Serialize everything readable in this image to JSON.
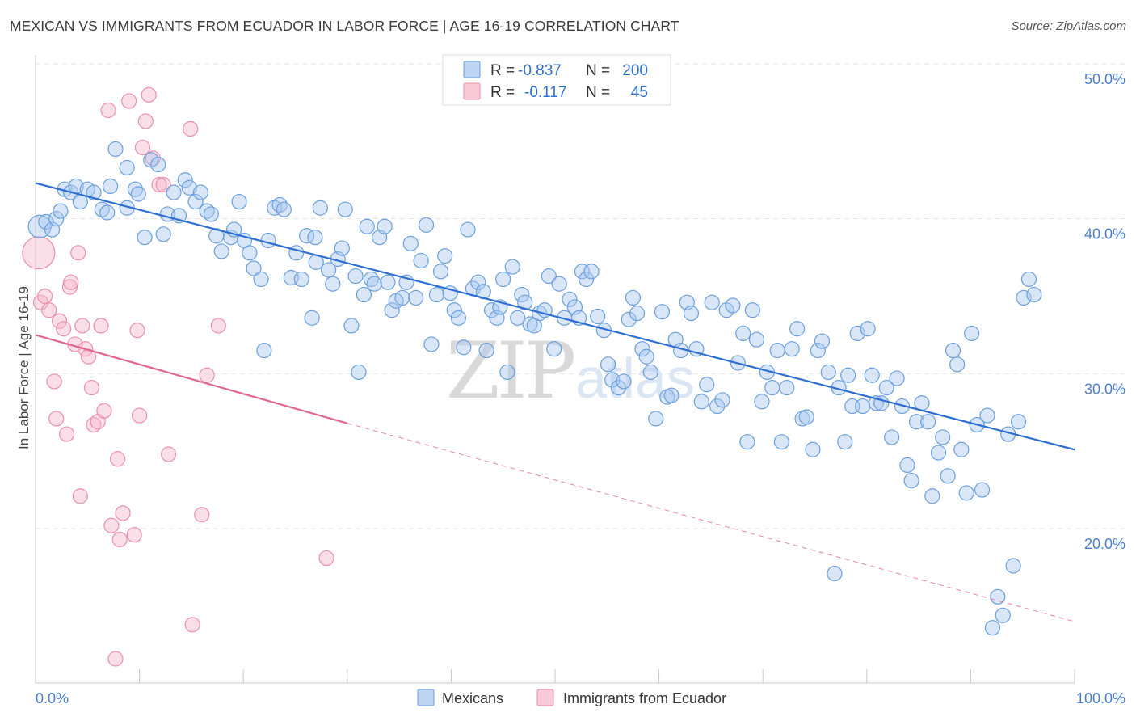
{
  "header": {
    "title": "MEXICAN VS IMMIGRANTS FROM ECUADOR IN LABOR FORCE | AGE 16-19 CORRELATION CHART",
    "source": "Source: ZipAtlas.com"
  },
  "watermark": {
    "zip": "ZIP",
    "atlas": "atlas"
  },
  "chart_data": {
    "type": "scatter",
    "title": "MEXICAN VS IMMIGRANTS FROM ECUADOR IN LABOR FORCE | AGE 16-19 CORRELATION CHART",
    "xlabel": "",
    "ylabel": "In Labor Force | Age 16-19",
    "xlim": [
      0,
      100
    ],
    "ylim": [
      10,
      52
    ],
    "x_tick_labels": {
      "min": "0.0%",
      "max": "100.0%"
    },
    "y_ticks": [
      {
        "value": 20,
        "label": "20.0%"
      },
      {
        "value": 30,
        "label": "30.0%"
      },
      {
        "value": 40,
        "label": "40.0%"
      },
      {
        "value": 50,
        "label": "50.0%"
      }
    ],
    "grid": true,
    "stats_legend": [
      {
        "r_label": "R =",
        "r_value": "-0.837",
        "n_label": "N =",
        "n_value": "200",
        "color": "#a8c8f0"
      },
      {
        "r_label": "R =",
        "r_value": "-0.117",
        "n_label": "N =",
        "n_value": "45",
        "color": "#f7b8cb"
      }
    ],
    "series": [
      {
        "name": "Mexicans",
        "color": "#a8c8f0",
        "stroke": "#6a9fdc",
        "trend": {
          "x": [
            0,
            100
          ],
          "y": [
            42.3,
            25.1
          ],
          "color": "#2f6fcf"
        },
        "points": [
          [
            0.4,
            39.5
          ],
          [
            1,
            39.8
          ],
          [
            1.6,
            39.3
          ],
          [
            2,
            40
          ],
          [
            2.4,
            40.5
          ],
          [
            2.8,
            41.9
          ],
          [
            3.4,
            41.7
          ],
          [
            3.9,
            42.1
          ],
          [
            4.3,
            41.1
          ],
          [
            5,
            41.9
          ],
          [
            5.6,
            41.7
          ],
          [
            6.4,
            40.6
          ],
          [
            6.9,
            40.4
          ],
          [
            7.2,
            42.1
          ],
          [
            7.7,
            44.5
          ],
          [
            8.8,
            40.7
          ],
          [
            8.8,
            43.3
          ],
          [
            9.6,
            41.9
          ],
          [
            9.9,
            41.6
          ],
          [
            10.5,
            38.8
          ],
          [
            11.1,
            43.8
          ],
          [
            11.8,
            43.5
          ],
          [
            12.3,
            39
          ],
          [
            12.7,
            40.3
          ],
          [
            13.3,
            41.7
          ],
          [
            13.8,
            40.2
          ],
          [
            14.4,
            42.5
          ],
          [
            14.8,
            42
          ],
          [
            15.4,
            41.1
          ],
          [
            15.9,
            41.7
          ],
          [
            16.5,
            40.5
          ],
          [
            16.9,
            40.3
          ],
          [
            17.4,
            38.9
          ],
          [
            17.9,
            37.9
          ],
          [
            18.8,
            38.8
          ],
          [
            19.1,
            39.3
          ],
          [
            19.6,
            41.1
          ],
          [
            20.1,
            38.6
          ],
          [
            20.6,
            37.8
          ],
          [
            21,
            36.8
          ],
          [
            21.7,
            36.1
          ],
          [
            22,
            31.5
          ],
          [
            22.4,
            38.6
          ],
          [
            23,
            40.7
          ],
          [
            23.5,
            40.9
          ],
          [
            23.9,
            40.6
          ],
          [
            24.6,
            36.2
          ],
          [
            25.1,
            37.8
          ],
          [
            25.6,
            36.1
          ],
          [
            26.1,
            38.9
          ],
          [
            26.6,
            33.6
          ],
          [
            26.9,
            38.8
          ],
          [
            27,
            37.2
          ],
          [
            27.4,
            40.7
          ],
          [
            28.2,
            36.7
          ],
          [
            28.6,
            35.8
          ],
          [
            29.1,
            37.4
          ],
          [
            29.5,
            38.1
          ],
          [
            29.8,
            40.6
          ],
          [
            30.4,
            33.1
          ],
          [
            30.8,
            36.3
          ],
          [
            31.1,
            30.1
          ],
          [
            31.6,
            35.1
          ],
          [
            31.9,
            39.5
          ],
          [
            32.3,
            36.1
          ],
          [
            32.6,
            35.8
          ],
          [
            33.1,
            38.8
          ],
          [
            33.6,
            39.5
          ],
          [
            33.9,
            35.9
          ],
          [
            34.3,
            34.1
          ],
          [
            34.7,
            34.7
          ],
          [
            35.3,
            34.9
          ],
          [
            35.7,
            35.9
          ],
          [
            36.1,
            38.4
          ],
          [
            36.6,
            34.9
          ],
          [
            37.1,
            37.3
          ],
          [
            37.6,
            39.6
          ],
          [
            38.1,
            31.9
          ],
          [
            38.6,
            35.1
          ],
          [
            39,
            36.6
          ],
          [
            39.4,
            37.6
          ],
          [
            39.9,
            35.2
          ],
          [
            40.3,
            34.1
          ],
          [
            40.7,
            33.6
          ],
          [
            41.2,
            31.7
          ],
          [
            41.6,
            39.3
          ],
          [
            42.1,
            35.5
          ],
          [
            42.6,
            35.9
          ],
          [
            43.1,
            35.3
          ],
          [
            43.4,
            31.5
          ],
          [
            43.9,
            34.1
          ],
          [
            44.4,
            33.6
          ],
          [
            44.7,
            34.3
          ],
          [
            45,
            36.1
          ],
          [
            45.4,
            30.1
          ],
          [
            45.9,
            36.9
          ],
          [
            46.4,
            33.6
          ],
          [
            46.8,
            35.1
          ],
          [
            47.1,
            34.6
          ],
          [
            47.6,
            33.2
          ],
          [
            48,
            33.1
          ],
          [
            48.5,
            33.9
          ],
          [
            49,
            34.1
          ],
          [
            49.4,
            36.3
          ],
          [
            49.9,
            31.6
          ],
          [
            50.4,
            35.8
          ],
          [
            50.9,
            33.6
          ],
          [
            51.4,
            34.8
          ],
          [
            51.9,
            34.3
          ],
          [
            52.3,
            33.6
          ],
          [
            52.6,
            36.6
          ],
          [
            53,
            36.1
          ],
          [
            53.5,
            36.6
          ],
          [
            54.1,
            33.7
          ],
          [
            54.7,
            32.8
          ],
          [
            55.1,
            30.6
          ],
          [
            55.5,
            29.6
          ],
          [
            56.1,
            29.1
          ],
          [
            56.6,
            29.5
          ],
          [
            57.1,
            33.5
          ],
          [
            57.5,
            34.9
          ],
          [
            57.9,
            33.9
          ],
          [
            58.4,
            31.6
          ],
          [
            58.8,
            31.1
          ],
          [
            59.2,
            30.1
          ],
          [
            59.7,
            27.1
          ],
          [
            60.3,
            34
          ],
          [
            60.8,
            28.5
          ],
          [
            61.2,
            28.6
          ],
          [
            61.6,
            32.2
          ],
          [
            62.1,
            31.5
          ],
          [
            62.7,
            34.6
          ],
          [
            63.1,
            33.9
          ],
          [
            63.6,
            31.6
          ],
          [
            64.1,
            28.2
          ],
          [
            64.6,
            29.3
          ],
          [
            65.1,
            34.6
          ],
          [
            65.6,
            27.9
          ],
          [
            66.1,
            28.3
          ],
          [
            66.5,
            34.1
          ],
          [
            67.1,
            34.4
          ],
          [
            67.6,
            30.7
          ],
          [
            68.1,
            32.6
          ],
          [
            68.5,
            25.6
          ],
          [
            69,
            34.1
          ],
          [
            69.4,
            32.2
          ],
          [
            69.9,
            28.2
          ],
          [
            70.4,
            30.1
          ],
          [
            70.9,
            29.1
          ],
          [
            71.4,
            31.5
          ],
          [
            71.8,
            25.6
          ],
          [
            72.3,
            29.1
          ],
          [
            72.8,
            31.6
          ],
          [
            73.3,
            32.9
          ],
          [
            73.8,
            27.1
          ],
          [
            74.2,
            27.2
          ],
          [
            74.8,
            25.1
          ],
          [
            75.3,
            31.5
          ],
          [
            75.7,
            32.1
          ],
          [
            76.3,
            30.1
          ],
          [
            76.9,
            17.1
          ],
          [
            77.3,
            29.1
          ],
          [
            77.9,
            25.6
          ],
          [
            78.2,
            29.9
          ],
          [
            78.6,
            27.9
          ],
          [
            79.1,
            32.6
          ],
          [
            79.6,
            27.9
          ],
          [
            80.1,
            32.9
          ],
          [
            80.5,
            29.9
          ],
          [
            80.9,
            28.1
          ],
          [
            81.4,
            28.1
          ],
          [
            81.9,
            29.1
          ],
          [
            82.4,
            25.9
          ],
          [
            82.9,
            29.7
          ],
          [
            83.4,
            27.9
          ],
          [
            83.9,
            24.1
          ],
          [
            84.3,
            23.1
          ],
          [
            84.8,
            26.9
          ],
          [
            85.3,
            28.1
          ],
          [
            85.9,
            26.9
          ],
          [
            86.3,
            22.1
          ],
          [
            86.9,
            24.9
          ],
          [
            87.3,
            25.9
          ],
          [
            87.8,
            23.4
          ],
          [
            88.3,
            31.5
          ],
          [
            88.7,
            30.6
          ],
          [
            89.1,
            25.1
          ],
          [
            89.6,
            22.3
          ],
          [
            90.1,
            32.6
          ],
          [
            90.6,
            26.7
          ],
          [
            91.1,
            22.5
          ],
          [
            91.6,
            27.3
          ],
          [
            92.1,
            13.6
          ],
          [
            92.6,
            15.6
          ],
          [
            93.1,
            14.4
          ],
          [
            93.6,
            26.1
          ],
          [
            94.1,
            17.6
          ],
          [
            94.6,
            26.9
          ],
          [
            95.1,
            34.9
          ],
          [
            95.6,
            36.1
          ],
          [
            96.1,
            35.1
          ]
        ]
      },
      {
        "name": "Immigrants from Ecuador",
        "color": "#f7b8cb",
        "stroke": "#ea8fab",
        "trend": {
          "x": [
            0,
            30
          ],
          "y": [
            32.5,
            26.8
          ],
          "dashed_to": [
            100,
            14.0
          ],
          "color": "#e06890"
        },
        "points": [
          [
            0.3,
            37.8
          ],
          [
            0.5,
            34.6
          ],
          [
            0.9,
            35
          ],
          [
            1.3,
            34.1
          ],
          [
            1.8,
            29.5
          ],
          [
            2,
            27.1
          ],
          [
            2.3,
            33.4
          ],
          [
            2.7,
            32.9
          ],
          [
            3,
            26.1
          ],
          [
            3.3,
            35.6
          ],
          [
            3.4,
            35.9
          ],
          [
            3.8,
            31.9
          ],
          [
            4.1,
            37.8
          ],
          [
            4.3,
            22.1
          ],
          [
            4.5,
            33.1
          ],
          [
            4.8,
            31.6
          ],
          [
            5.1,
            31.1
          ],
          [
            5.4,
            29.1
          ],
          [
            5.6,
            26.7
          ],
          [
            6,
            26.9
          ],
          [
            6.3,
            33.1
          ],
          [
            6.6,
            27.6
          ],
          [
            7,
            47
          ],
          [
            7.3,
            20.2
          ],
          [
            7.7,
            11.6
          ],
          [
            7.9,
            24.5
          ],
          [
            8.1,
            19.3
          ],
          [
            8.4,
            21
          ],
          [
            9,
            47.6
          ],
          [
            9.5,
            19.6
          ],
          [
            9.8,
            32.8
          ],
          [
            10,
            27.3
          ],
          [
            10.3,
            44.6
          ],
          [
            10.6,
            46.3
          ],
          [
            10.9,
            48
          ],
          [
            11.3,
            43.9
          ],
          [
            11.9,
            42.2
          ],
          [
            12.3,
            42.2
          ],
          [
            12.8,
            24.8
          ],
          [
            14.9,
            45.8
          ],
          [
            15.1,
            13.8
          ],
          [
            16,
            20.9
          ],
          [
            16.5,
            29.9
          ],
          [
            17.6,
            33.1
          ],
          [
            28,
            18.1
          ]
        ]
      }
    ],
    "bottom_legend": [
      {
        "label": "Mexicans",
        "color": "#a8c8f0"
      },
      {
        "label": "Immigrants from Ecuador",
        "color": "#f7b8cb"
      }
    ]
  }
}
